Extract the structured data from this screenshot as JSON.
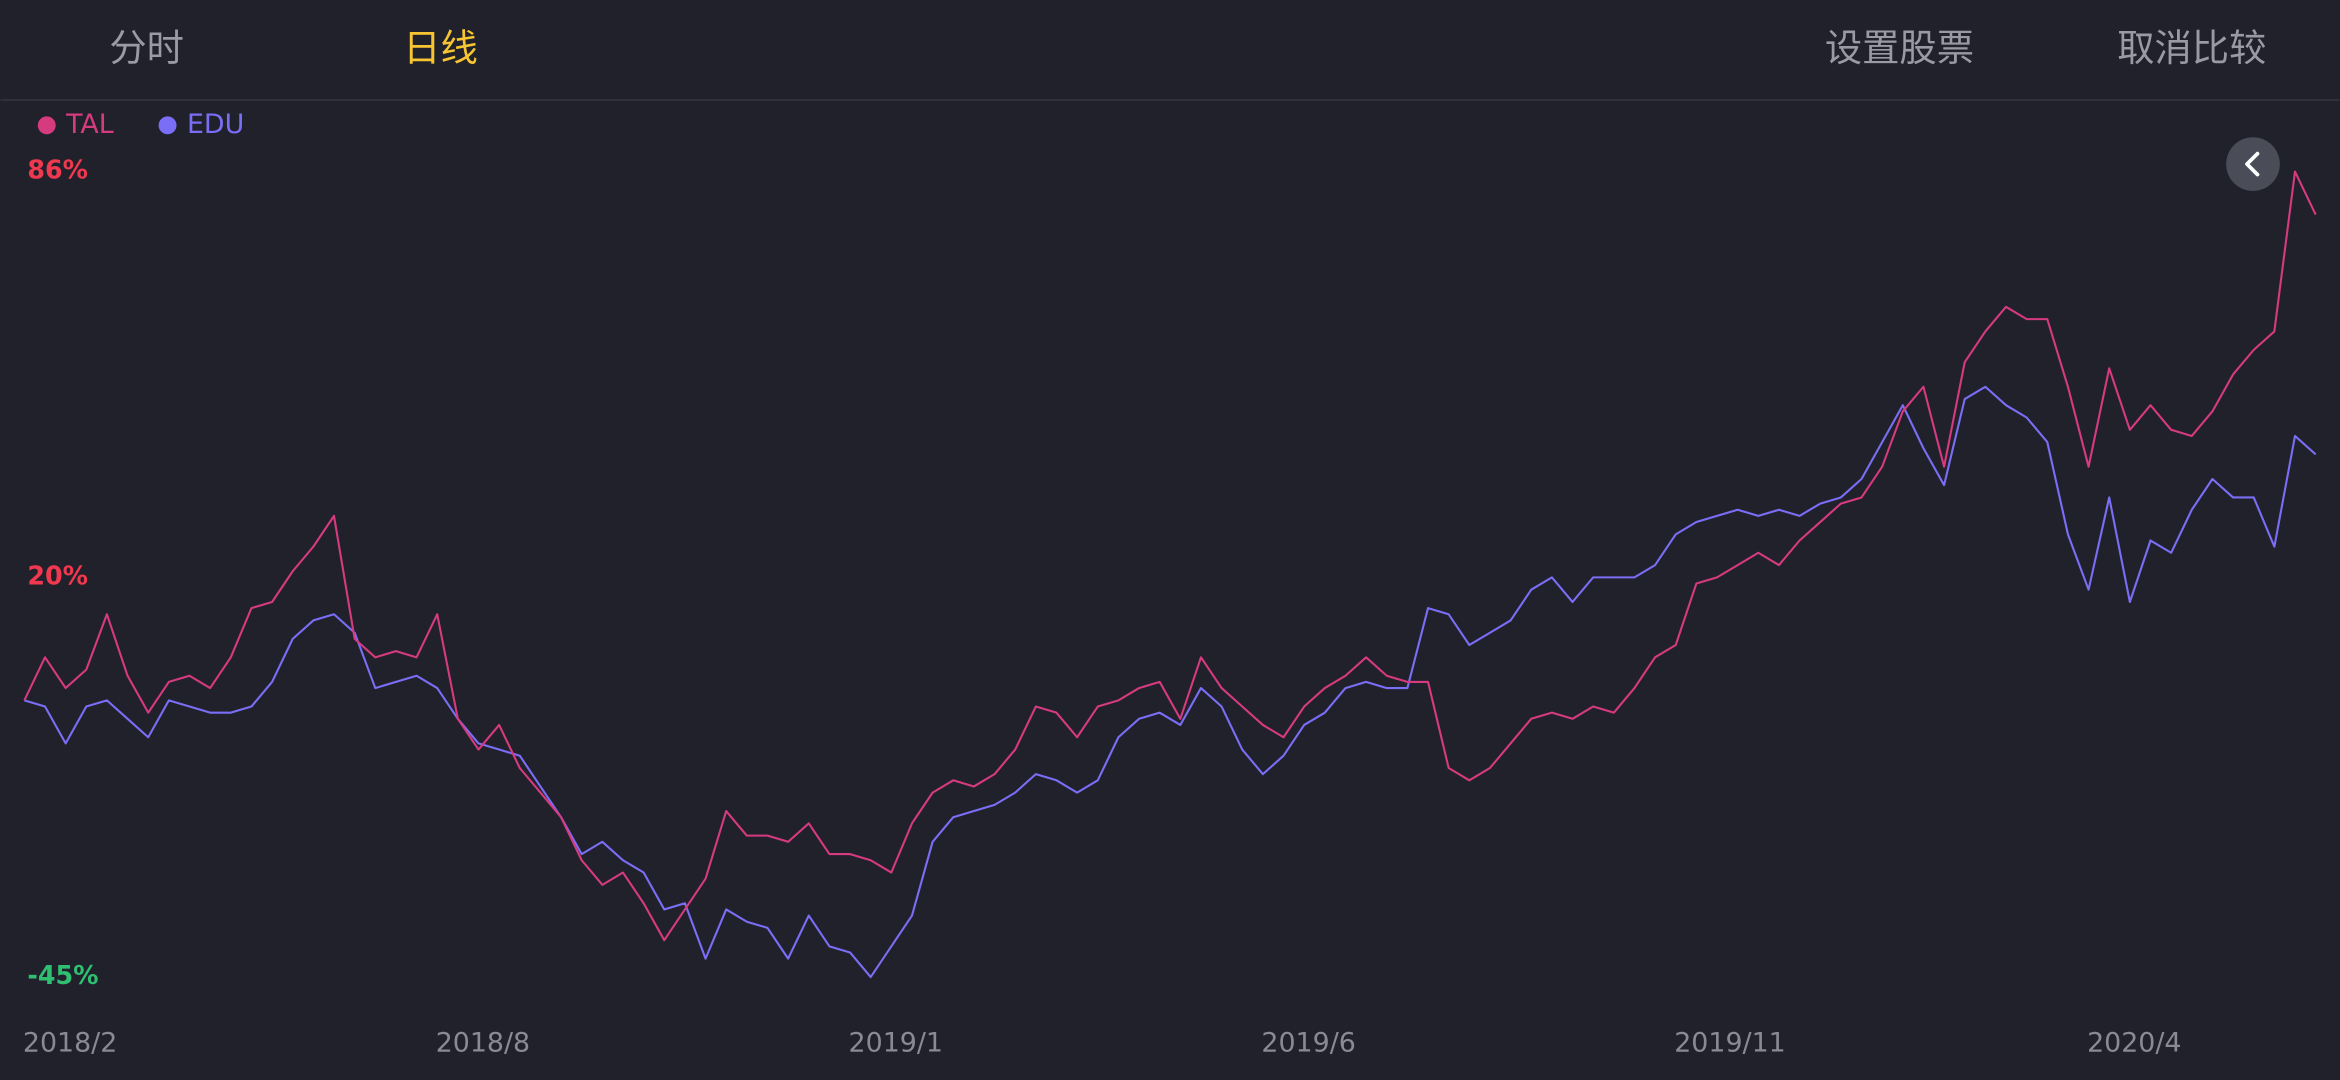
{
  "header": {
    "tabs": [
      "分时",
      "日线"
    ],
    "actions": [
      "设置股票",
      "取消比较"
    ]
  },
  "chart_data": {
    "type": "line",
    "categories": [
      "2018/2",
      null,
      null,
      null,
      null,
      null,
      null,
      null,
      null,
      null,
      null,
      null,
      null,
      null,
      null,
      null,
      null,
      null,
      null,
      null,
      "2018/8",
      null,
      null,
      null,
      null,
      null,
      null,
      null,
      null,
      null,
      null,
      null,
      null,
      null,
      null,
      null,
      null,
      null,
      null,
      null,
      "2019/1",
      null,
      null,
      null,
      null,
      null,
      null,
      null,
      null,
      null,
      null,
      null,
      null,
      null,
      null,
      null,
      null,
      null,
      null,
      null,
      "2019/6",
      null,
      null,
      null,
      null,
      null,
      null,
      null,
      null,
      null,
      null,
      null,
      null,
      null,
      null,
      null,
      null,
      null,
      null,
      null,
      "2019/11",
      null,
      null,
      null,
      null,
      null,
      null,
      null,
      null,
      null,
      null,
      null,
      null,
      null,
      null,
      null,
      null,
      null,
      null,
      null,
      "2020/4",
      null,
      null,
      null,
      null,
      null,
      null,
      null,
      null,
      null,
      null,
      null
    ],
    "series": [
      {
        "name": "TAL",
        "color": "#d63a7f",
        "values": [
          0,
          7,
          2,
          5,
          14,
          4,
          -2,
          3,
          4,
          2,
          7,
          15,
          16,
          21,
          25,
          30,
          10,
          7,
          8,
          7,
          14,
          -3,
          -8,
          -4,
          -11,
          -15,
          -19,
          -26,
          -30,
          -28,
          -33,
          -39,
          -34,
          -29,
          -18,
          -22,
          -22,
          -23,
          -20,
          -25,
          -25,
          -26,
          -28,
          -20,
          -15,
          -13,
          -14,
          -12,
          -8,
          -1,
          -2,
          -6,
          -1,
          0,
          2,
          3,
          -3,
          7,
          2,
          -1,
          -4,
          -6,
          -1,
          2,
          4,
          7,
          4,
          3,
          3,
          -11,
          -13,
          -11,
          -7,
          -3,
          -2,
          -3,
          -1,
          -2,
          2,
          7,
          9,
          19,
          20,
          22,
          24,
          22,
          26,
          29,
          32,
          33,
          38,
          47,
          51,
          38,
          55,
          60,
          64,
          62,
          62,
          51,
          38,
          54,
          44,
          48,
          44,
          43,
          47,
          53,
          57,
          60,
          86,
          79
        ]
      },
      {
        "name": "EDU",
        "color": "#7b6ef6",
        "values": [
          0,
          -1,
          -7,
          -1,
          0,
          -3,
          -6,
          0,
          -1,
          -2,
          -2,
          -1,
          3,
          10,
          13,
          14,
          11,
          2,
          3,
          4,
          2,
          -3,
          -7,
          -8,
          -9,
          -14,
          -19,
          -25,
          -23,
          -26,
          -28,
          -34,
          -33,
          -42,
          -34,
          -36,
          -37,
          -42,
          -35,
          -40,
          -41,
          -45,
          -40,
          -35,
          -23,
          -19,
          -18,
          -17,
          -15,
          -12,
          -13,
          -15,
          -13,
          -6,
          -3,
          -2,
          -4,
          2,
          -1,
          -8,
          -12,
          -9,
          -4,
          -2,
          2,
          3,
          2,
          2,
          15,
          14,
          9,
          11,
          13,
          18,
          20,
          16,
          20,
          20,
          20,
          22,
          27,
          29,
          30,
          31,
          30,
          31,
          30,
          32,
          33,
          36,
          42,
          48,
          41,
          35,
          49,
          51,
          48,
          46,
          42,
          27,
          18,
          33,
          16,
          26,
          24,
          31,
          36,
          33,
          33,
          25,
          43,
          40
        ]
      }
    ],
    "ylim": [
      -45,
      86
    ],
    "yticks": [
      {
        "value": 86,
        "label": "86%"
      },
      {
        "value": 20,
        "label": "20%"
      },
      {
        "value": -45,
        "label": "-45%"
      }
    ],
    "up_color": "#f0384f",
    "down_color": "#2fbf71",
    "grid": false
  }
}
